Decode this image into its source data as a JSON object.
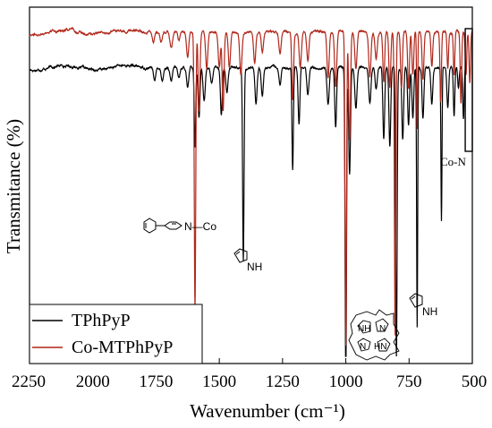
{
  "chart_data": {
    "type": "line",
    "title": "",
    "xlabel": "Wavenumber (cm⁻¹)",
    "ylabel": "Transmitance (%)",
    "xlim": [
      2250,
      500
    ],
    "x_reversed": true,
    "xticks": [
      2250,
      2000,
      1750,
      1500,
      1250,
      1000,
      750,
      500
    ],
    "y_ticks_shown": false,
    "grid": false,
    "legend_position": "bottom-left",
    "series": [
      {
        "name": "TPhPyP",
        "color": "#000000",
        "baseline": 0.83,
        "start": 2250,
        "end": 525,
        "peaks": [
          [
            1755,
            0.035,
            6
          ],
          [
            1725,
            0.035,
            6
          ],
          [
            1690,
            0.04,
            7
          ],
          [
            1660,
            0.03,
            6
          ],
          [
            1625,
            0.06,
            6
          ],
          [
            1596,
            0.22,
            4
          ],
          [
            1580,
            0.14,
            5
          ],
          [
            1560,
            0.09,
            6
          ],
          [
            1530,
            0.045,
            6
          ],
          [
            1492,
            0.13,
            5
          ],
          [
            1470,
            0.07,
            6
          ],
          [
            1405,
            0.54,
            4
          ],
          [
            1355,
            0.1,
            6
          ],
          [
            1330,
            0.08,
            6
          ],
          [
            1260,
            0.05,
            6
          ],
          [
            1210,
            0.29,
            4
          ],
          [
            1185,
            0.16,
            5
          ],
          [
            1150,
            0.08,
            6
          ],
          [
            1070,
            0.1,
            6
          ],
          [
            1040,
            0.17,
            5
          ],
          [
            1000,
            0.92,
            4
          ],
          [
            985,
            0.3,
            5
          ],
          [
            960,
            0.11,
            6
          ],
          [
            905,
            0.1,
            6
          ],
          [
            880,
            0.06,
            6
          ],
          [
            850,
            0.2,
            5
          ],
          [
            826,
            0.22,
            5
          ],
          [
            800,
            0.82,
            4
          ],
          [
            775,
            0.2,
            5
          ],
          [
            752,
            0.16,
            5
          ],
          [
            735,
            0.14,
            5
          ],
          [
            718,
            0.73,
            3
          ],
          [
            695,
            0.14,
            5
          ],
          [
            660,
            0.1,
            5
          ],
          [
            622,
            0.43,
            3
          ],
          [
            597,
            0.11,
            5
          ],
          [
            572,
            0.14,
            4
          ],
          [
            555,
            0.06,
            4
          ],
          [
            535,
            0.14,
            4
          ]
        ]
      },
      {
        "name": "Co-MTPhPyP",
        "color": "#b0271b",
        "baseline": 0.93,
        "start": 2250,
        "end": 500,
        "peaks": [
          [
            1760,
            0.03,
            6
          ],
          [
            1730,
            0.03,
            6
          ],
          [
            1690,
            0.045,
            7
          ],
          [
            1660,
            0.025,
            6
          ],
          [
            1625,
            0.07,
            6
          ],
          [
            1596,
            0.78,
            4
          ],
          [
            1580,
            0.22,
            5
          ],
          [
            1550,
            0.1,
            6
          ],
          [
            1500,
            0.1,
            6
          ],
          [
            1485,
            0.22,
            5
          ],
          [
            1460,
            0.1,
            6
          ],
          [
            1415,
            0.12,
            6
          ],
          [
            1360,
            0.09,
            6
          ],
          [
            1330,
            0.06,
            6
          ],
          [
            1260,
            0.06,
            6
          ],
          [
            1210,
            0.19,
            5
          ],
          [
            1180,
            0.1,
            6
          ],
          [
            1150,
            0.08,
            6
          ],
          [
            1070,
            0.13,
            6
          ],
          [
            1040,
            0.15,
            6
          ],
          [
            1000,
            0.88,
            4
          ],
          [
            985,
            0.3,
            5
          ],
          [
            960,
            0.1,
            6
          ],
          [
            905,
            0.12,
            6
          ],
          [
            880,
            0.07,
            6
          ],
          [
            850,
            0.14,
            5
          ],
          [
            826,
            0.16,
            5
          ],
          [
            805,
            0.85,
            4
          ],
          [
            780,
            0.16,
            5
          ],
          [
            752,
            0.16,
            5
          ],
          [
            735,
            0.12,
            5
          ],
          [
            718,
            0.27,
            3
          ],
          [
            695,
            0.13,
            5
          ],
          [
            660,
            0.1,
            5
          ],
          [
            625,
            0.2,
            4
          ],
          [
            597,
            0.1,
            4
          ],
          [
            572,
            0.12,
            4
          ],
          [
            545,
            0.2,
            4
          ],
          [
            525,
            0.12,
            4
          ],
          [
            510,
            0.14,
            4
          ]
        ]
      }
    ],
    "annotations": {
      "co_n_label": "Co-N",
      "pyridine_co_label": "N—Co",
      "pyrrole_label_1": "NH",
      "pyrrole_label_2": "NH",
      "porphyrin_nh_label": "NH",
      "porphyrin_hn_label": "HN",
      "porphyrin_n_label_1": "N",
      "porphyrin_n_label_2": "N"
    },
    "co_n_box_range": [
      528,
      500
    ]
  }
}
